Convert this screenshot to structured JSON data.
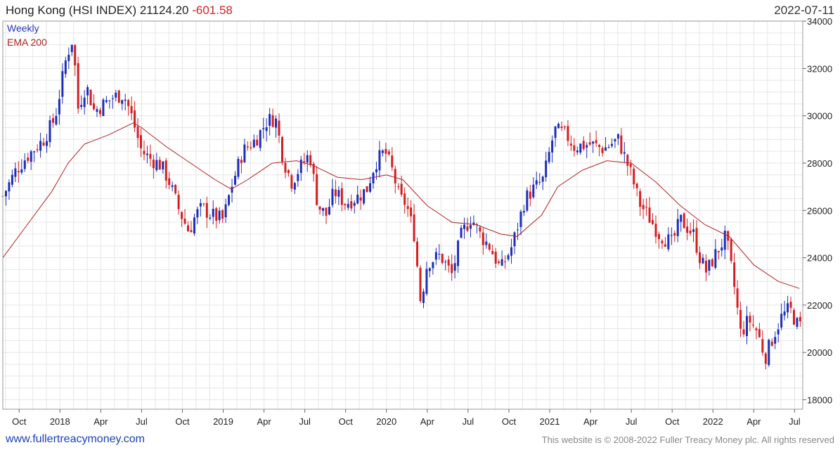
{
  "header": {
    "title": "Hong Kong (HSI INDEX) 21124.20",
    "change": "-601.58",
    "date": "2022-07-11"
  },
  "legend": {
    "weekly": "Weekly",
    "ema": "EMA 200"
  },
  "footer": {
    "link": "www.fullertreacymoney.com",
    "copyright": "This website is © 2008-2022 Fuller Treacy Money plc. All rights reserved"
  },
  "colors": {
    "up": "#1b2fb8",
    "down": "#d41f1f",
    "ema": "#b22222",
    "grid": "#e6e6e6",
    "axis": "#555555"
  },
  "chart_data": {
    "type": "candlestick",
    "title": "Hong Kong (HSI INDEX)",
    "period": "Weekly",
    "ylim": [
      17600,
      34000
    ],
    "yticks": [
      18000,
      20000,
      22000,
      24000,
      26000,
      28000,
      30000,
      32000,
      34000
    ],
    "x_range": [
      2017.65,
      2022.55
    ],
    "xticks": [
      {
        "label": "Oct",
        "t": 2017.75
      },
      {
        "label": "2018",
        "t": 2018.0
      },
      {
        "label": "Apr",
        "t": 2018.25
      },
      {
        "label": "Jul",
        "t": 2018.5
      },
      {
        "label": "Oct",
        "t": 2018.75
      },
      {
        "label": "2019",
        "t": 2019.0
      },
      {
        "label": "Apr",
        "t": 2019.25
      },
      {
        "label": "Jul",
        "t": 2019.5
      },
      {
        "label": "Oct",
        "t": 2019.75
      },
      {
        "label": "2020",
        "t": 2020.0
      },
      {
        "label": "Apr",
        "t": 2020.25
      },
      {
        "label": "Jul",
        "t": 2020.5
      },
      {
        "label": "Oct",
        "t": 2020.75
      },
      {
        "label": "2021",
        "t": 2021.0
      },
      {
        "label": "Apr",
        "t": 2021.25
      },
      {
        "label": "Jul",
        "t": 2021.5
      },
      {
        "label": "Oct",
        "t": 2021.75
      },
      {
        "label": "2022",
        "t": 2022.0
      },
      {
        "label": "Apr",
        "t": 2022.25
      },
      {
        "label": "Jul",
        "t": 2022.5
      }
    ],
    "close_path": [
      [
        2017.65,
        26600
      ],
      [
        2017.73,
        27700
      ],
      [
        2017.8,
        28300
      ],
      [
        2017.9,
        29000
      ],
      [
        2017.97,
        29900
      ],
      [
        2018.04,
        32500
      ],
      [
        2018.08,
        33300
      ],
      [
        2018.11,
        30300
      ],
      [
        2018.16,
        31300
      ],
      [
        2018.21,
        30200
      ],
      [
        2018.27,
        30500
      ],
      [
        2018.33,
        30800
      ],
      [
        2018.39,
        30900
      ],
      [
        2018.43,
        30200
      ],
      [
        2018.5,
        28500
      ],
      [
        2018.55,
        28200
      ],
      [
        2018.62,
        27900
      ],
      [
        2018.67,
        27200
      ],
      [
        2018.73,
        26000
      ],
      [
        2018.79,
        25100
      ],
      [
        2018.83,
        25800
      ],
      [
        2018.87,
        26100
      ],
      [
        2018.93,
        25800
      ],
      [
        2019.0,
        25600
      ],
      [
        2019.05,
        27000
      ],
      [
        2019.12,
        28500
      ],
      [
        2019.2,
        29000
      ],
      [
        2019.27,
        29800
      ],
      [
        2019.32,
        29900
      ],
      [
        2019.37,
        28100
      ],
      [
        2019.42,
        27200
      ],
      [
        2019.46,
        27700
      ],
      [
        2019.53,
        28400
      ],
      [
        2019.58,
        26200
      ],
      [
        2019.63,
        25800
      ],
      [
        2019.68,
        26800
      ],
      [
        2019.75,
        26300
      ],
      [
        2019.83,
        26600
      ],
      [
        2019.88,
        26900
      ],
      [
        2019.93,
        28000
      ],
      [
        2019.99,
        28500
      ],
      [
        2020.04,
        27600
      ],
      [
        2020.08,
        26500
      ],
      [
        2020.12,
        26300
      ],
      [
        2020.17,
        25000
      ],
      [
        2020.21,
        22100
      ],
      [
        2020.25,
        23800
      ],
      [
        2020.33,
        24100
      ],
      [
        2020.4,
        23300
      ],
      [
        2020.46,
        25000
      ],
      [
        2020.52,
        25700
      ],
      [
        2020.58,
        24900
      ],
      [
        2020.63,
        24500
      ],
      [
        2020.7,
        23500
      ],
      [
        2020.77,
        24500
      ],
      [
        2020.85,
        26500
      ],
      [
        2020.9,
        26900
      ],
      [
        2020.96,
        27300
      ],
      [
        2021.03,
        29400
      ],
      [
        2021.1,
        29200
      ],
      [
        2021.15,
        28700
      ],
      [
        2021.25,
        28800
      ],
      [
        2021.33,
        28600
      ],
      [
        2021.42,
        29000
      ],
      [
        2021.5,
        27500
      ],
      [
        2021.55,
        26300
      ],
      [
        2021.6,
        25800
      ],
      [
        2021.67,
        25000
      ],
      [
        2021.75,
        24600
      ],
      [
        2021.8,
        25600
      ],
      [
        2021.88,
        25000
      ],
      [
        2021.92,
        24000
      ],
      [
        2021.96,
        23400
      ],
      [
        2022.02,
        24200
      ],
      [
        2022.08,
        24900
      ],
      [
        2022.13,
        22800
      ],
      [
        2022.17,
        20800
      ],
      [
        2022.22,
        21400
      ],
      [
        2022.27,
        20900
      ],
      [
        2022.32,
        19800
      ],
      [
        2022.37,
        20700
      ],
      [
        2022.42,
        21500
      ],
      [
        2022.47,
        21850
      ],
      [
        2022.52,
        21124
      ]
    ],
    "ema_200": [
      [
        2017.65,
        24000
      ],
      [
        2017.8,
        25400
      ],
      [
        2017.95,
        26800
      ],
      [
        2018.05,
        28000
      ],
      [
        2018.15,
        28800
      ],
      [
        2018.3,
        29200
      ],
      [
        2018.45,
        29700
      ],
      [
        2018.5,
        29500
      ],
      [
        2018.65,
        28700
      ],
      [
        2018.8,
        28000
      ],
      [
        2018.95,
        27300
      ],
      [
        2019.05,
        26900
      ],
      [
        2019.15,
        27300
      ],
      [
        2019.3,
        28000
      ],
      [
        2019.45,
        28100
      ],
      [
        2019.55,
        27900
      ],
      [
        2019.7,
        27400
      ],
      [
        2019.85,
        27300
      ],
      [
        2020.0,
        27500
      ],
      [
        2020.1,
        27300
      ],
      [
        2020.25,
        26200
      ],
      [
        2020.4,
        25500
      ],
      [
        2020.55,
        25400
      ],
      [
        2020.7,
        25000
      ],
      [
        2020.8,
        24900
      ],
      [
        2020.95,
        25800
      ],
      [
        2021.05,
        27000
      ],
      [
        2021.2,
        27700
      ],
      [
        2021.35,
        28100
      ],
      [
        2021.5,
        28000
      ],
      [
        2021.65,
        27200
      ],
      [
        2021.8,
        26200
      ],
      [
        2021.95,
        25400
      ],
      [
        2022.1,
        24900
      ],
      [
        2022.25,
        23700
      ],
      [
        2022.4,
        23000
      ],
      [
        2022.53,
        22700
      ]
    ]
  }
}
